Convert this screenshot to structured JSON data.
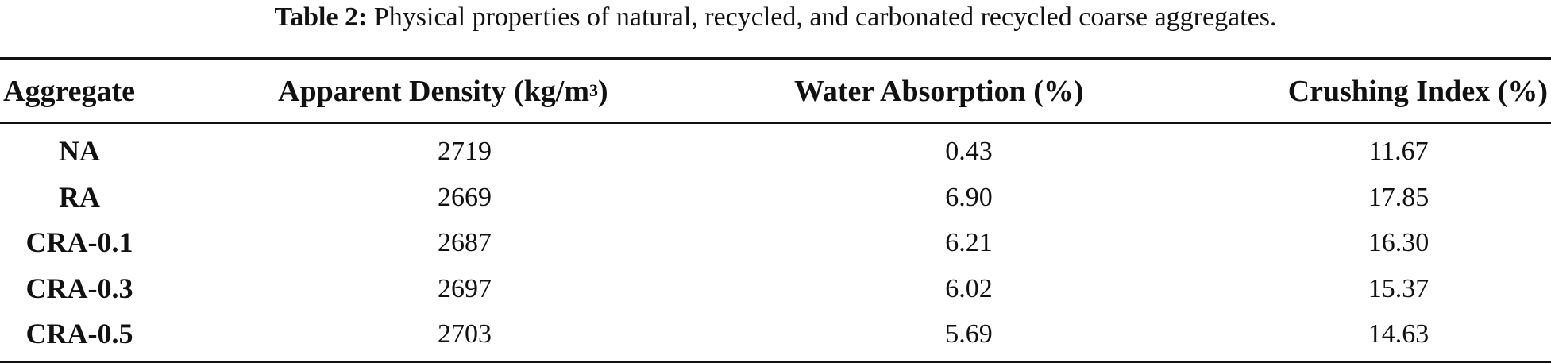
{
  "caption": {
    "label": "Table 2:",
    "text": "Physical properties of natural, recycled, and carbonated recycled coarse aggregates."
  },
  "table": {
    "headers": {
      "aggregate": "Aggregate",
      "density_main": "Apparent Density (kg/m",
      "density_sup": "3",
      "density_end": ")",
      "water": "Water Absorption (%)",
      "crushing": "Crushing Index (%)"
    },
    "rows": [
      {
        "aggregate": "NA",
        "density": "2719",
        "water": "0.43",
        "crushing": "11.67"
      },
      {
        "aggregate": "RA",
        "density": "2669",
        "water": "6.90",
        "crushing": "17.85"
      },
      {
        "aggregate": "CRA-0.1",
        "density": "2687",
        "water": "6.21",
        "crushing": "16.30"
      },
      {
        "aggregate": "CRA-0.3",
        "density": "2697",
        "water": "6.02",
        "crushing": "15.37"
      },
      {
        "aggregate": "CRA-0.5",
        "density": "2703",
        "water": "5.69",
        "crushing": "14.63"
      }
    ]
  }
}
